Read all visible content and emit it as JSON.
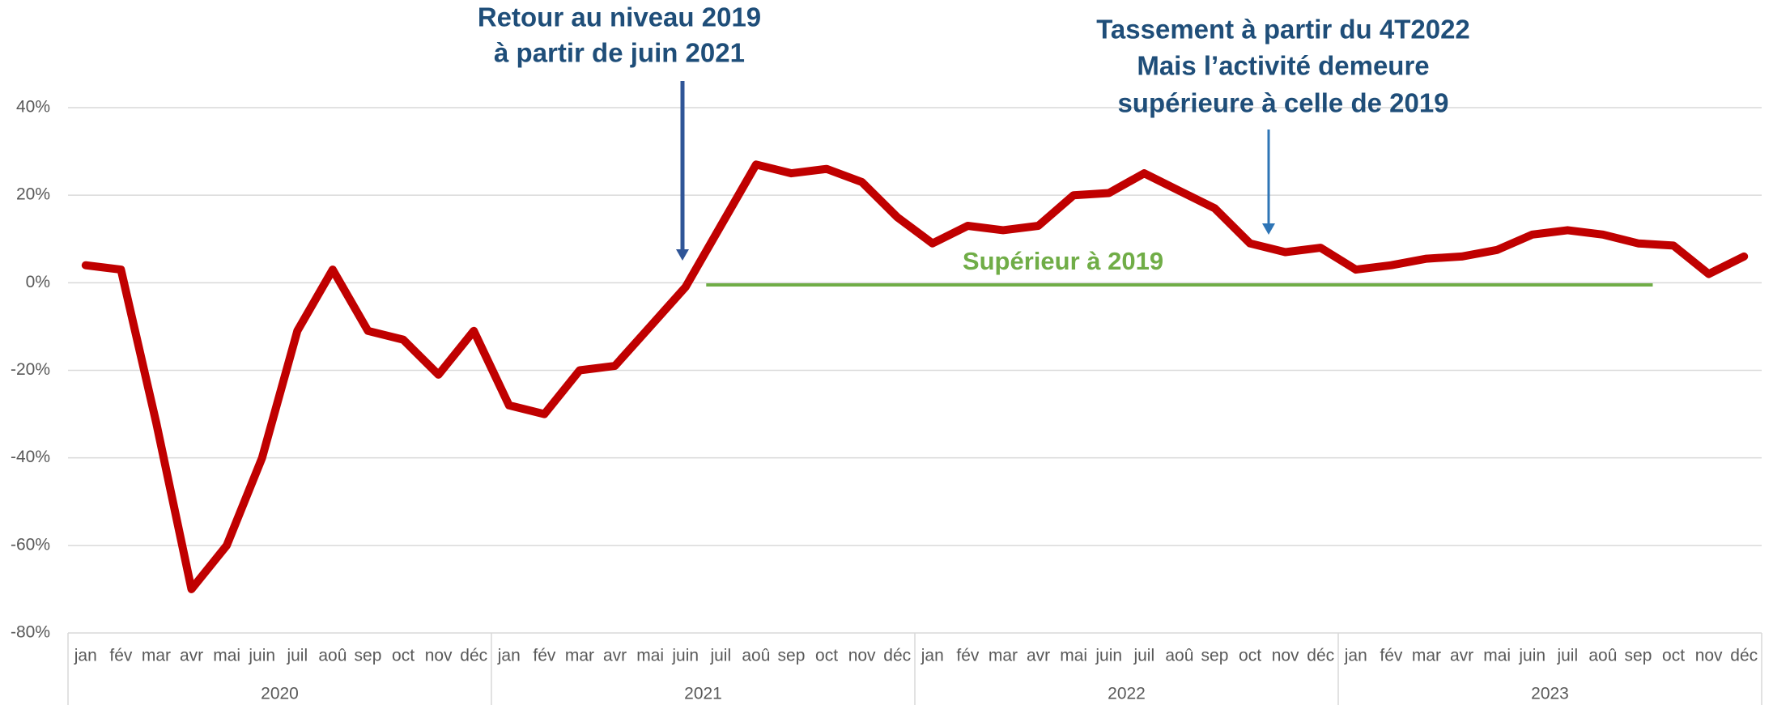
{
  "chart_data": {
    "type": "line",
    "categories": [
      "jan",
      "fév",
      "mar",
      "avr",
      "mai",
      "juin",
      "juil",
      "aoû",
      "sep",
      "oct",
      "nov",
      "déc",
      "jan",
      "fév",
      "mar",
      "avr",
      "mai",
      "juin",
      "juil",
      "aoû",
      "sep",
      "oct",
      "nov",
      "déc",
      "jan",
      "fév",
      "mar",
      "avr",
      "mai",
      "juin",
      "juil",
      "aoû",
      "sep",
      "oct",
      "nov",
      "déc",
      "jan",
      "fév",
      "mar",
      "avr",
      "mai",
      "juin",
      "juil",
      "aoû",
      "sep",
      "oct",
      "nov",
      "déc"
    ],
    "x_groups": [
      "2020",
      "2021",
      "2022",
      "2023"
    ],
    "series": [
      {
        "color": "#c00000",
        "values": [
          4,
          3,
          -32,
          -70,
          -60,
          -40,
          -11,
          3,
          -11,
          -13,
          -21,
          -11,
          -28,
          -30,
          -20,
          -19,
          -10,
          -1,
          13,
          27,
          25,
          26,
          23,
          15,
          9,
          13,
          12,
          13,
          20,
          20.5,
          25,
          21,
          17,
          9,
          7,
          8,
          3,
          4,
          5.5,
          6,
          7.5,
          11,
          12,
          11,
          9,
          8.5,
          2,
          6
        ]
      }
    ],
    "ylim": [
      -80,
      40
    ],
    "yticks": [
      {
        "value": -80,
        "label": "-80%"
      },
      {
        "value": -60,
        "label": "-60%"
      },
      {
        "value": -40,
        "label": "-40%"
      },
      {
        "value": -20,
        "label": "-20%"
      },
      {
        "value": 0,
        "label": "0%"
      },
      {
        "value": 20,
        "label": "20%"
      },
      {
        "value": 40,
        "label": "40%"
      }
    ],
    "grid": true,
    "annotations": [
      {
        "lines": [
          "Retour au niveau 2019",
          "à partir de juin 2021"
        ],
        "color": "#1f4e79"
      },
      {
        "lines": [
          "Tassement à partir du 4T2022",
          "Mais l’activité demeure",
          "supérieure à celle de 2019"
        ],
        "color": "#1f4e79"
      }
    ],
    "reference_line": {
      "value": -0.5,
      "label": "Supérieur à 2019",
      "color": "#70ad47"
    }
  }
}
